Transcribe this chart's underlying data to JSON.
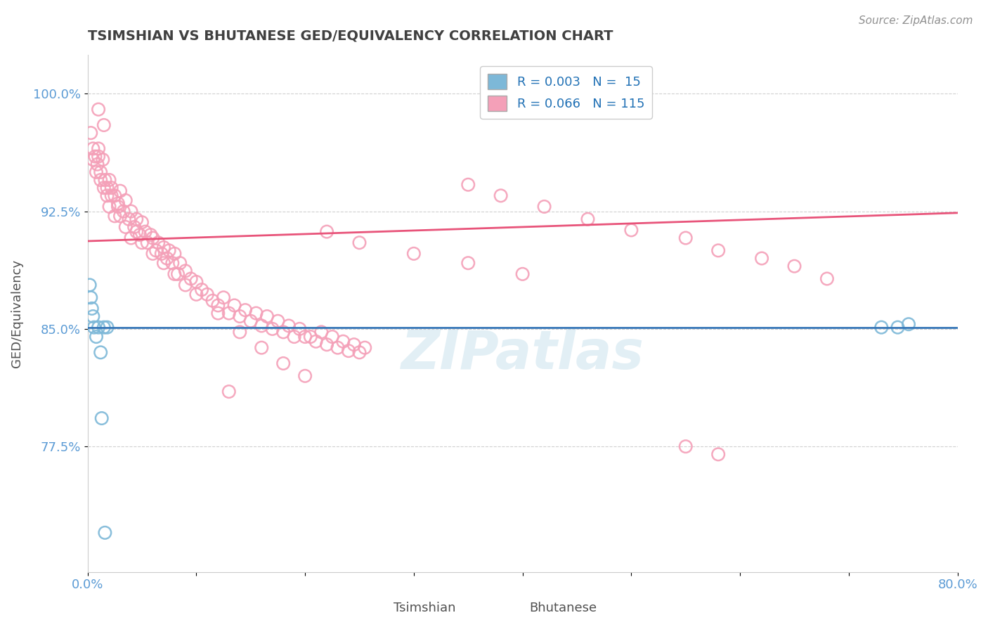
{
  "title": "TSIMSHIAN VS BHUTANESE GED/EQUIVALENCY CORRELATION CHART",
  "source": "Source: ZipAtlas.com",
  "ylabel": "GED/Equivalency",
  "xlim": [
    0.0,
    0.8
  ],
  "ylim": [
    0.695,
    1.025
  ],
  "yticks": [
    0.775,
    0.85,
    0.925,
    1.0
  ],
  "ytick_labels": [
    "77.5%",
    "85.0%",
    "92.5%",
    "100.0%"
  ],
  "xticks": [
    0.0,
    0.1,
    0.2,
    0.3,
    0.4,
    0.5,
    0.6,
    0.7,
    0.8
  ],
  "xtick_labels": [
    "0.0%",
    "",
    "",
    "",
    "",
    "",
    "",
    "",
    "80.0%"
  ],
  "tsimshian_color": "#7db8d8",
  "bhutanese_color": "#f4a0b8",
  "tsimshian_line_color": "#3777b8",
  "bhutanese_line_color": "#e8547a",
  "tsimshian_R": 0.003,
  "tsimshian_N": 15,
  "bhutanese_R": 0.066,
  "bhutanese_N": 115,
  "watermark": "ZIPatlas",
  "background_color": "#ffffff",
  "grid_color": "#d0d0d0",
  "tick_label_color": "#5b9bd5",
  "title_color": "#404040",
  "tsimshian_line_y0": 0.851,
  "tsimshian_line_y1": 0.851,
  "bhutanese_line_y0": 0.906,
  "bhutanese_line_y1": 0.924,
  "tsimshian_x": [
    0.002,
    0.003,
    0.004,
    0.005,
    0.006,
    0.008,
    0.01,
    0.012,
    0.013,
    0.015,
    0.016,
    0.018,
    0.73,
    0.745,
    0.755
  ],
  "tsimshian_y": [
    0.878,
    0.87,
    0.863,
    0.858,
    0.851,
    0.845,
    0.851,
    0.835,
    0.793,
    0.851,
    0.72,
    0.851,
    0.851,
    0.851,
    0.853
  ],
  "bhutanese_x": [
    0.003,
    0.005,
    0.007,
    0.009,
    0.01,
    0.012,
    0.014,
    0.016,
    0.018,
    0.02,
    0.022,
    0.025,
    0.028,
    0.03,
    0.033,
    0.035,
    0.038,
    0.04,
    0.043,
    0.045,
    0.048,
    0.05,
    0.053,
    0.055,
    0.058,
    0.06,
    0.063,
    0.065,
    0.068,
    0.07,
    0.073,
    0.075,
    0.078,
    0.08,
    0.083,
    0.085,
    0.09,
    0.095,
    0.1,
    0.105,
    0.11,
    0.115,
    0.12,
    0.125,
    0.13,
    0.135,
    0.14,
    0.145,
    0.15,
    0.155,
    0.16,
    0.165,
    0.17,
    0.175,
    0.18,
    0.185,
    0.19,
    0.195,
    0.2,
    0.205,
    0.21,
    0.215,
    0.22,
    0.225,
    0.23,
    0.235,
    0.24,
    0.245,
    0.25,
    0.255,
    0.005,
    0.008,
    0.01,
    0.012,
    0.015,
    0.018,
    0.02,
    0.022,
    0.025,
    0.028,
    0.03,
    0.035,
    0.04,
    0.045,
    0.05,
    0.06,
    0.07,
    0.08,
    0.09,
    0.1,
    0.12,
    0.14,
    0.16,
    0.18,
    0.2,
    0.22,
    0.25,
    0.3,
    0.35,
    0.4,
    0.35,
    0.38,
    0.42,
    0.46,
    0.5,
    0.55,
    0.58,
    0.62,
    0.65,
    0.68,
    0.55,
    0.58,
    0.13,
    0.01,
    0.015
  ],
  "bhutanese_y": [
    0.975,
    0.965,
    0.96,
    0.955,
    0.965,
    0.95,
    0.958,
    0.945,
    0.94,
    0.945,
    0.94,
    0.935,
    0.93,
    0.938,
    0.925,
    0.932,
    0.92,
    0.925,
    0.915,
    0.92,
    0.91,
    0.918,
    0.912,
    0.905,
    0.91,
    0.908,
    0.9,
    0.905,
    0.898,
    0.902,
    0.895,
    0.9,
    0.892,
    0.898,
    0.885,
    0.892,
    0.887,
    0.882,
    0.88,
    0.875,
    0.872,
    0.868,
    0.865,
    0.87,
    0.86,
    0.865,
    0.858,
    0.862,
    0.855,
    0.86,
    0.852,
    0.858,
    0.85,
    0.855,
    0.848,
    0.852,
    0.845,
    0.85,
    0.845,
    0.845,
    0.842,
    0.848,
    0.84,
    0.845,
    0.838,
    0.842,
    0.836,
    0.84,
    0.835,
    0.838,
    0.958,
    0.95,
    0.96,
    0.945,
    0.94,
    0.935,
    0.928,
    0.935,
    0.922,
    0.928,
    0.922,
    0.915,
    0.908,
    0.912,
    0.905,
    0.898,
    0.892,
    0.885,
    0.878,
    0.872,
    0.86,
    0.848,
    0.838,
    0.828,
    0.82,
    0.912,
    0.905,
    0.898,
    0.892,
    0.885,
    0.942,
    0.935,
    0.928,
    0.92,
    0.913,
    0.908,
    0.9,
    0.895,
    0.89,
    0.882,
    0.775,
    0.77,
    0.81,
    0.99,
    0.98
  ]
}
